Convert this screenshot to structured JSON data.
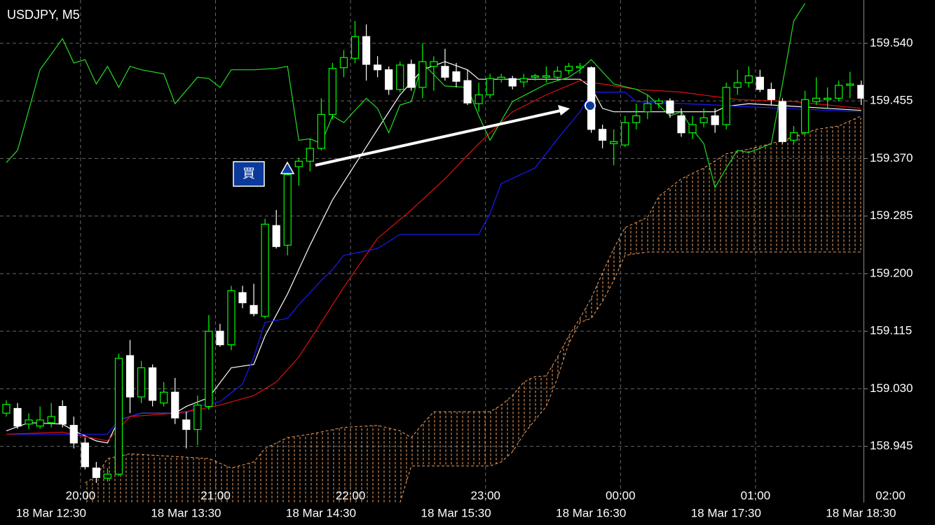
{
  "chart_data": {
    "type": "candlestick",
    "title": "USDJPY, M5",
    "xlim": [
      24.2,
      408
    ],
    "ylim": [
      158.862,
      159.604
    ],
    "grid": true,
    "up_color": "#00ff00",
    "down_color": "#ffffff",
    "yticks": [
      {
        "value": 159.54,
        "label": "159.540"
      },
      {
        "value": 159.455,
        "label": "159.455"
      },
      {
        "value": 159.37,
        "label": "159.370"
      },
      {
        "value": 159.285,
        "label": "159.285"
      },
      {
        "value": 159.2,
        "label": "159.200"
      },
      {
        "value": 159.115,
        "label": "159.115"
      },
      {
        "value": 159.03,
        "label": "159.030"
      },
      {
        "value": 158.945,
        "label": "158.945"
      }
    ],
    "xticks": [
      {
        "value": 60,
        "label": "20:00"
      },
      {
        "value": 120,
        "label": "21:00"
      },
      {
        "value": 180,
        "label": "22:00"
      },
      {
        "value": 240,
        "label": "23:00"
      },
      {
        "value": 300,
        "label": "00:00"
      },
      {
        "value": 360,
        "label": "01:00"
      },
      {
        "value": 420,
        "label": "02:00"
      }
    ],
    "xticks_lower": [
      {
        "value": 60,
        "label": "18 Mar 12:30"
      },
      {
        "value": 120,
        "label": "18 Mar 13:30"
      },
      {
        "value": 180,
        "label": "18 Mar 14:30"
      },
      {
        "value": 240,
        "label": "18 Mar 15:30"
      },
      {
        "value": 300,
        "label": "18 Mar 16:30"
      },
      {
        "value": 360,
        "label": "18 Mar 17:30"
      },
      {
        "value": 420,
        "label": "18 Mar 18:30"
      }
    ],
    "x": [
      27,
      32,
      37,
      42,
      47,
      52,
      57,
      62,
      67,
      72,
      77,
      82,
      87,
      92,
      97,
      102,
      107,
      112,
      117,
      122,
      127,
      132,
      137,
      142,
      147,
      152,
      157,
      162,
      167,
      172,
      177,
      182,
      187,
      192,
      197,
      202,
      207,
      212,
      217,
      222,
      227,
      232,
      237,
      242,
      247,
      252,
      257,
      262,
      267,
      272,
      277,
      282,
      287,
      292,
      297,
      302,
      307,
      312,
      317,
      322,
      327,
      332,
      337,
      342,
      347,
      352,
      357,
      362,
      367,
      372,
      377,
      382,
      387,
      392,
      397,
      402,
      407
    ],
    "open": [
      158.994,
      159.001,
      158.978,
      158.975,
      158.98,
      159.004,
      158.976,
      158.95,
      158.913,
      158.898,
      158.904,
      159.079,
      159.018,
      159.061,
      159.009,
      159.025,
      158.984,
      158.97,
      159.004,
      159.115,
      159.095,
      159.172,
      159.153,
      159.137,
      159.271,
      159.242,
      159.358,
      159.366,
      159.385,
      159.435,
      159.504,
      159.518,
      159.55,
      159.508,
      159.501,
      159.472,
      159.509,
      159.475,
      159.506,
      159.506,
      159.498,
      159.485,
      159.451,
      159.464,
      159.487,
      159.488,
      159.483,
      159.49,
      159.49,
      159.49,
      159.5,
      159.504,
      159.504,
      159.413,
      159.392,
      159.39,
      159.423,
      159.439,
      159.451,
      159.455,
      159.433,
      159.408,
      159.423,
      159.433,
      159.42,
      159.475,
      159.482,
      159.49,
      159.472,
      159.454,
      159.397,
      159.408,
      159.454,
      159.457,
      159.459,
      159.478,
      159.478
    ],
    "high": [
      159.013,
      159.009,
      158.994,
      159.004,
      159.009,
      159.013,
      158.989,
      158.958,
      158.922,
      158.913,
      159.082,
      159.102,
      159.071,
      159.066,
      159.04,
      159.046,
      158.996,
      159.02,
      159.139,
      159.126,
      159.182,
      159.182,
      159.185,
      159.281,
      159.294,
      159.356,
      159.371,
      159.399,
      159.459,
      159.511,
      159.53,
      159.573,
      159.568,
      159.521,
      159.506,
      159.513,
      159.516,
      159.54,
      159.521,
      159.532,
      159.511,
      159.501,
      159.482,
      159.495,
      159.495,
      159.492,
      159.495,
      159.495,
      159.506,
      159.506,
      159.511,
      159.511,
      159.506,
      159.42,
      159.413,
      159.433,
      159.451,
      159.464,
      159.459,
      159.459,
      159.444,
      159.433,
      159.444,
      159.444,
      159.482,
      159.501,
      159.506,
      159.501,
      159.482,
      159.459,
      159.418,
      159.47,
      159.49,
      159.475,
      159.485,
      159.498,
      159.485
    ],
    "low": [
      158.989,
      158.971,
      158.971,
      158.971,
      158.973,
      158.973,
      158.942,
      158.911,
      158.891,
      158.893,
      158.901,
      158.994,
      159.009,
      159.004,
      159.004,
      158.978,
      158.942,
      158.947,
      158.999,
      159.092,
      159.087,
      159.149,
      159.137,
      159.134,
      159.237,
      159.227,
      159.33,
      159.351,
      159.382,
      159.428,
      159.49,
      159.511,
      159.485,
      159.49,
      159.464,
      159.468,
      159.47,
      159.459,
      159.47,
      159.485,
      159.475,
      159.449,
      159.439,
      159.459,
      159.482,
      159.472,
      159.475,
      159.485,
      159.482,
      159.485,
      159.494,
      159.495,
      159.408,
      159.385,
      159.36,
      159.387,
      159.413,
      159.428,
      159.444,
      159.43,
      159.402,
      159.399,
      159.416,
      159.408,
      159.413,
      159.464,
      159.475,
      159.468,
      159.449,
      159.392,
      159.392,
      159.405,
      159.449,
      159.444,
      159.454,
      159.459,
      159.449
    ],
    "close": [
      159.007,
      158.975,
      158.984,
      158.984,
      158.989,
      158.978,
      158.95,
      158.915,
      158.899,
      158.904,
      159.075,
      159.018,
      159.061,
      159.013,
      159.025,
      158.987,
      158.97,
      159.006,
      159.115,
      159.095,
      159.175,
      159.157,
      159.141,
      159.273,
      159.24,
      159.346,
      159.366,
      159.385,
      159.435,
      159.503,
      159.519,
      159.55,
      159.509,
      159.501,
      159.472,
      159.508,
      159.475,
      159.513,
      159.513,
      159.49,
      159.484,
      159.452,
      159.464,
      159.488,
      159.49,
      159.477,
      159.488,
      159.492,
      159.492,
      159.499,
      159.506,
      159.506,
      159.413,
      159.397,
      159.395,
      159.423,
      159.433,
      159.451,
      159.455,
      159.437,
      159.408,
      159.42,
      159.43,
      159.42,
      159.475,
      159.482,
      159.492,
      159.472,
      159.457,
      159.395,
      159.408,
      159.457,
      159.459,
      159.459,
      159.478,
      159.48,
      159.459
    ],
    "lines": [
      {
        "color": "#ffffff",
        "x": [
          27,
          37,
          52,
          57,
          67,
          72,
          77,
          87,
          102,
          107,
          117,
          127,
          137,
          142,
          152,
          162,
          172,
          182,
          192,
          202,
          212,
          222,
          232,
          237,
          282,
          287,
          292,
          297,
          342,
          347,
          357,
          407
        ],
        "values": [
          158.968,
          158.98,
          158.978,
          158.968,
          158.953,
          158.95,
          158.984,
          158.994,
          158.994,
          159.004,
          159.017,
          159.061,
          159.066,
          159.108,
          159.17,
          159.242,
          159.309,
          159.361,
          159.413,
          159.464,
          159.501,
          159.513,
          159.501,
          159.487,
          159.487,
          159.475,
          159.444,
          159.439,
          159.439,
          159.447,
          159.451,
          159.441
        ]
      },
      {
        "color": "#1a1aff",
        "x": [
          27,
          72,
          77,
          87,
          107,
          112,
          122,
          132,
          137,
          142,
          152,
          157,
          167,
          172,
          177,
          192,
          202,
          237,
          242,
          247,
          262,
          272,
          282,
          287,
          302,
          307,
          342,
          352,
          407
        ],
        "values": [
          158.963,
          158.963,
          158.984,
          158.994,
          158.994,
          159.004,
          159.011,
          159.037,
          159.077,
          159.128,
          159.134,
          159.154,
          159.19,
          159.206,
          159.227,
          159.237,
          159.258,
          159.258,
          159.289,
          159.333,
          159.356,
          159.399,
          159.439,
          159.468,
          159.468,
          159.454,
          159.449,
          159.447,
          159.439
        ]
      },
      {
        "color": "#e01010",
        "x": [
          27,
          52,
          72,
          82,
          102,
          112,
          122,
          137,
          147,
          157,
          167,
          177,
          192,
          207,
          222,
          237,
          252,
          267,
          282,
          292,
          307,
          327,
          352,
          377,
          407
        ],
        "values": [
          158.963,
          158.966,
          158.953,
          158.989,
          158.994,
          158.999,
          159.006,
          159.02,
          159.04,
          159.077,
          159.128,
          159.18,
          159.252,
          159.294,
          159.34,
          159.392,
          159.439,
          159.464,
          159.485,
          159.48,
          159.472,
          159.468,
          159.457,
          159.454,
          159.444
        ]
      },
      {
        "color": "#22dd22",
        "x": [
          27,
          32,
          42,
          52,
          57,
          62,
          67,
          72,
          77,
          82,
          87,
          97,
          102,
          112,
          117,
          122,
          127,
          137,
          147,
          152,
          157,
          162,
          167,
          172,
          177,
          187,
          192,
          197,
          202,
          207,
          212,
          222,
          232,
          237,
          242,
          252,
          267,
          277,
          282,
          287,
          297,
          307,
          312,
          317,
          322,
          327,
          332,
          337,
          342,
          347,
          352,
          357,
          362,
          367,
          372,
          377,
          382
        ],
        "values": [
          159.364,
          159.382,
          159.501,
          159.547,
          159.511,
          159.516,
          159.48,
          159.506,
          159.475,
          159.506,
          159.501,
          159.495,
          159.451,
          159.49,
          159.488,
          159.475,
          159.501,
          159.501,
          159.503,
          159.506,
          159.397,
          159.399,
          159.392,
          159.433,
          159.423,
          159.459,
          159.444,
          159.408,
          159.449,
          159.454,
          159.511,
          159.477,
          159.475,
          159.433,
          159.397,
          159.454,
          159.48,
          159.49,
          159.501,
          159.516,
          159.48,
          159.472,
          159.464,
          159.449,
          159.433,
          159.439,
          159.413,
          159.392,
          159.327,
          159.356,
          159.382,
          159.379,
          159.385,
          159.392,
          159.48,
          159.573,
          159.599
        ]
      }
    ],
    "cloud": {
      "color": "#f0a060",
      "x_a": [
        62,
        67,
        72,
        82,
        117,
        127,
        137,
        142,
        152,
        162,
        177,
        192,
        202,
        207,
        212,
        217,
        242,
        247,
        252,
        257,
        262,
        267,
        272,
        277,
        282,
        287,
        292,
        297,
        302,
        312,
        317,
        327,
        337,
        347,
        357,
        367,
        377,
        387,
        397,
        407
      ],
      "span_a": [
        158.891,
        158.901,
        158.927,
        158.934,
        158.927,
        158.913,
        158.922,
        158.942,
        158.958,
        158.963,
        158.973,
        158.976,
        158.968,
        158.958,
        158.978,
        158.996,
        158.996,
        159.006,
        159.02,
        159.04,
        159.048,
        159.049,
        159.077,
        159.108,
        159.134,
        159.164,
        159.201,
        159.237,
        159.268,
        159.283,
        159.314,
        159.34,
        159.356,
        159.377,
        159.384,
        159.392,
        159.402,
        159.413,
        159.418,
        159.433
      ],
      "x_b": [
        202,
        207,
        217,
        242,
        247,
        252,
        257,
        262,
        267,
        272,
        277,
        282,
        287,
        292,
        297,
        302,
        312,
        407
      ],
      "span_b": [
        158.862,
        158.916,
        158.916,
        158.916,
        158.922,
        158.937,
        158.963,
        158.984,
        159.004,
        159.046,
        159.097,
        159.128,
        159.134,
        159.159,
        159.19,
        159.227,
        159.232,
        159.232
      ]
    },
    "signal": {
      "label": "買"
    }
  }
}
